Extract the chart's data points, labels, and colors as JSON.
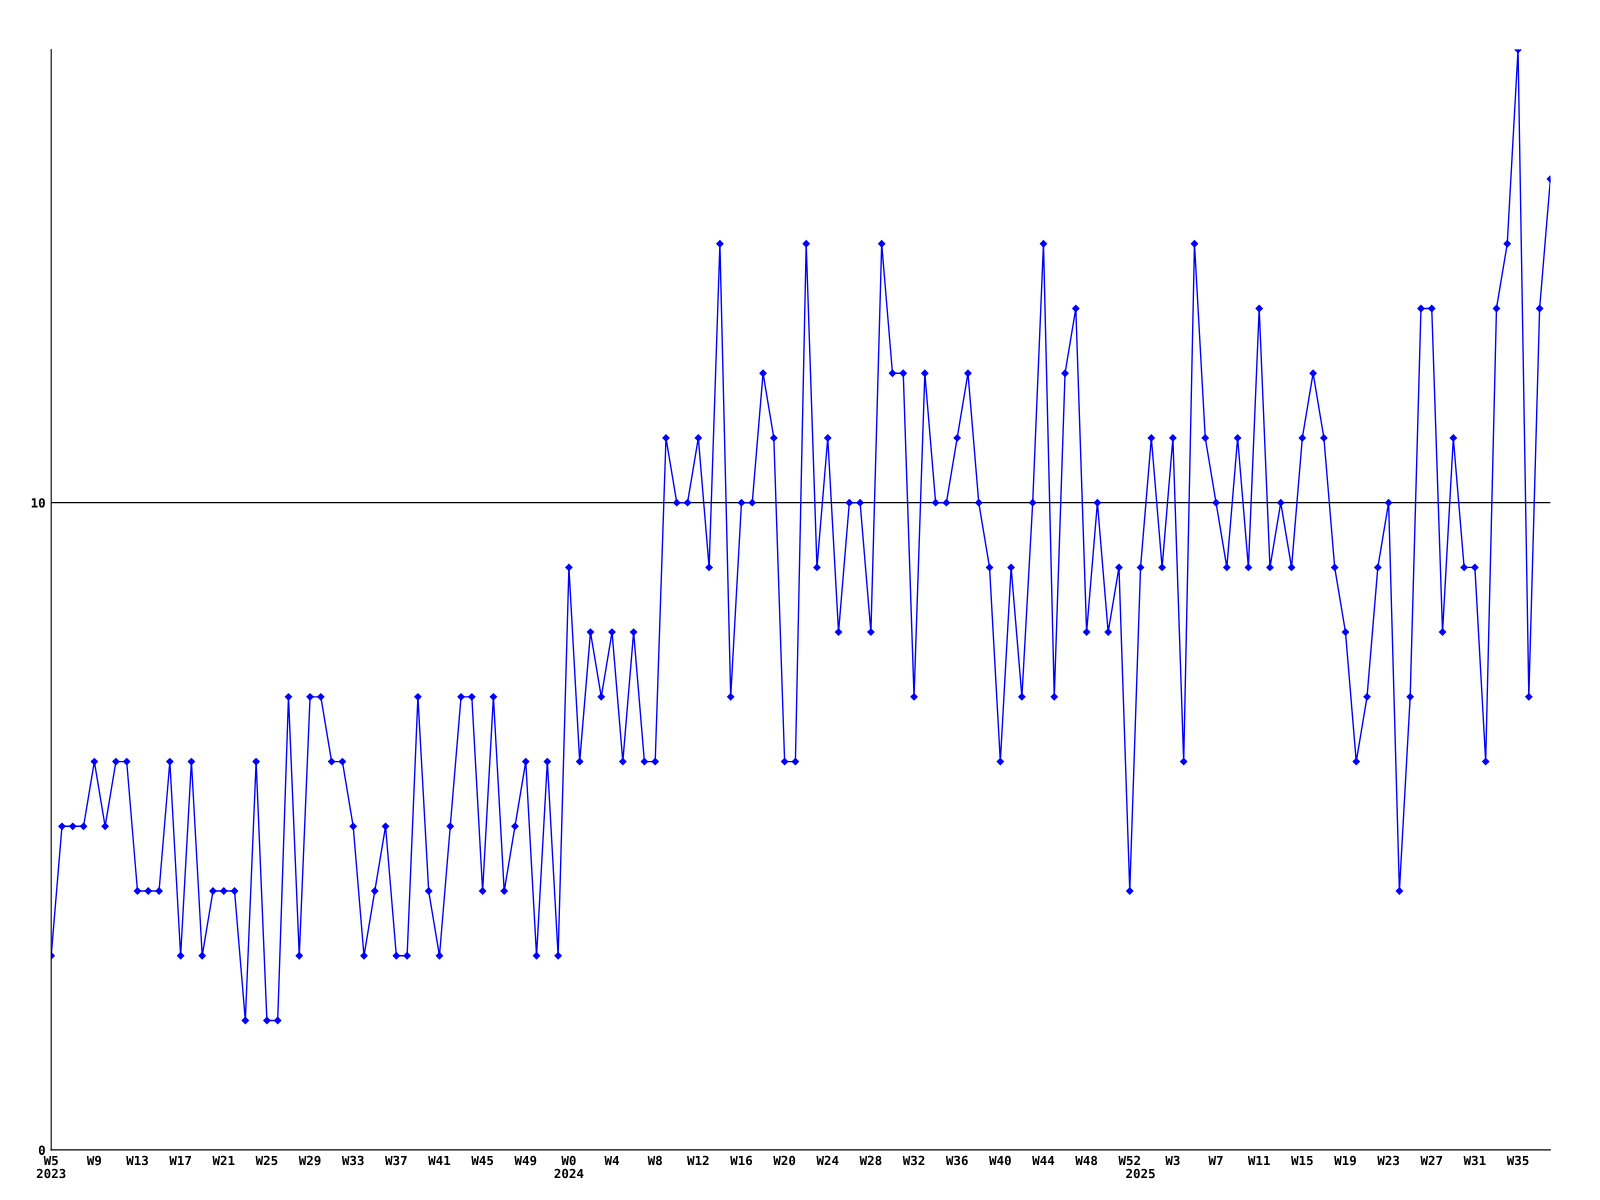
{
  "chart_data": {
    "type": "line",
    "categories": [
      "W5\n2023",
      null,
      null,
      null,
      "W9",
      null,
      null,
      null,
      "W13",
      null,
      null,
      null,
      "W17",
      null,
      null,
      null,
      "W21",
      null,
      null,
      null,
      "W25",
      null,
      null,
      null,
      "W29",
      null,
      null,
      null,
      "W33",
      null,
      null,
      null,
      "W37",
      null,
      null,
      null,
      "W41",
      null,
      null,
      null,
      "W45",
      null,
      null,
      null,
      "W49",
      null,
      null,
      null,
      "W0\n2024",
      null,
      null,
      null,
      "W4",
      null,
      null,
      null,
      "W8",
      null,
      null,
      null,
      "W12",
      null,
      null,
      null,
      "W16",
      null,
      null,
      null,
      "W20",
      null,
      null,
      null,
      "W24",
      null,
      null,
      null,
      "W28",
      null,
      null,
      null,
      "W32",
      null,
      null,
      null,
      "W36",
      null,
      null,
      null,
      "W40",
      null,
      null,
      null,
      "W44",
      null,
      null,
      null,
      "W48",
      null,
      null,
      null,
      "W52",
      "\n2025",
      null,
      null,
      "W3",
      null,
      null,
      null,
      "W7",
      null,
      null,
      null,
      "W11",
      null,
      null,
      null,
      "W15",
      null,
      null,
      null,
      "W19",
      null,
      null,
      null,
      "W23",
      null,
      null,
      null,
      "W27",
      null,
      null,
      null,
      "W31",
      null,
      null,
      null,
      "W35",
      null,
      null,
      null
    ],
    "series": [
      {
        "color": "#0000ff",
        "values": [
          3,
          5,
          5,
          5,
          6,
          5,
          6,
          6,
          4,
          4,
          4,
          6,
          3,
          6,
          3,
          4,
          4,
          4,
          2,
          6,
          2,
          2,
          7,
          3,
          7,
          7,
          6,
          6,
          5,
          3,
          4,
          5,
          3,
          3,
          7,
          4,
          3,
          5,
          7,
          7,
          4,
          7,
          4,
          5,
          6,
          3,
          6,
          3,
          9,
          6,
          8,
          7,
          8,
          6,
          8,
          6,
          6,
          11,
          10,
          10,
          11,
          9,
          14,
          7,
          10,
          10,
          12,
          11,
          6,
          6,
          14,
          9,
          11,
          8,
          10,
          10,
          8,
          14,
          12,
          12,
          7,
          12,
          10,
          10,
          11,
          12,
          10,
          9,
          6,
          9,
          7,
          10,
          14,
          7,
          12,
          13,
          8,
          10,
          8,
          9,
          4,
          9,
          11,
          9,
          11,
          6,
          14,
          11,
          10,
          9,
          11,
          9,
          13,
          9,
          10,
          9,
          11,
          12,
          11,
          9,
          8,
          6,
          7,
          9,
          10,
          4,
          7,
          13,
          13,
          8,
          11,
          9,
          9,
          6,
          13,
          14,
          17,
          7,
          13,
          15
        ]
      }
    ],
    "ylim": [
      0,
      17
    ],
    "yticks": [
      0,
      10
    ],
    "grid": "y",
    "marker": "diamond",
    "line_style": "solid"
  }
}
